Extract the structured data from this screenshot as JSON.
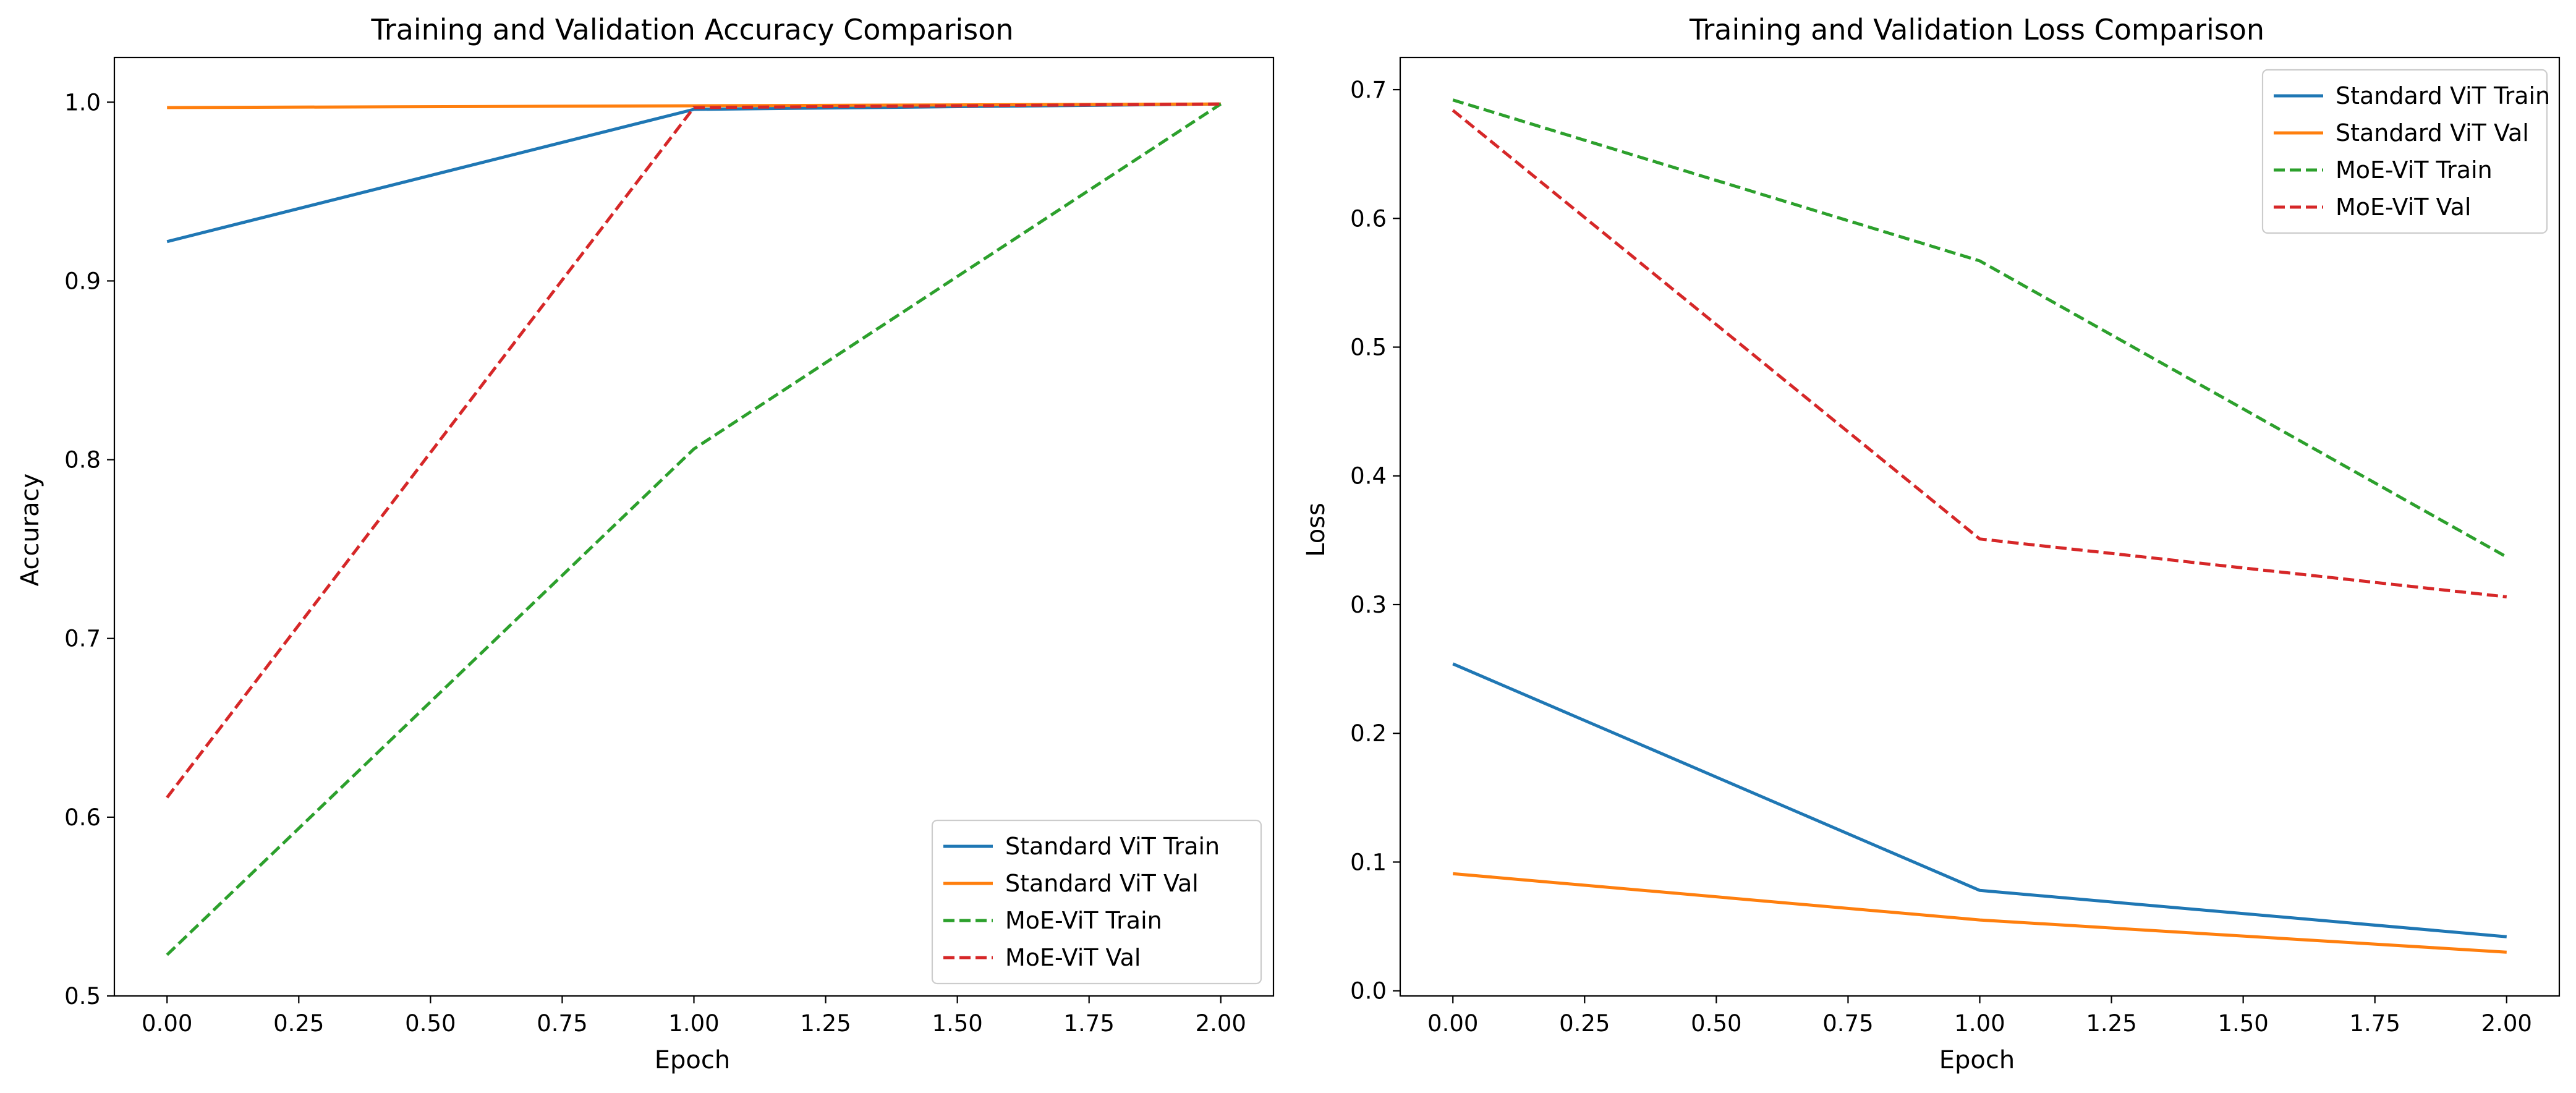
{
  "chart_data": [
    {
      "type": "line",
      "title": "Training and Validation Accuracy Comparison",
      "xlabel": "Epoch",
      "ylabel": "Accuracy",
      "xlim": [
        -0.1,
        2.1
      ],
      "ylim": [
        0.5,
        1.025
      ],
      "xticks": [
        0.0,
        0.25,
        0.5,
        0.75,
        1.0,
        1.25,
        1.5,
        1.75,
        2.0
      ],
      "xtick_labels": [
        "0.00",
        "0.25",
        "0.50",
        "0.75",
        "1.00",
        "1.25",
        "1.50",
        "1.75",
        "2.00"
      ],
      "yticks": [
        0.5,
        0.6,
        0.7,
        0.8,
        0.9,
        1.0
      ],
      "ytick_labels": [
        "0.5",
        "0.6",
        "0.7",
        "0.8",
        "0.9",
        "1.0"
      ],
      "grid": false,
      "legend": "lower right",
      "x": [
        0,
        1,
        2
      ],
      "series": [
        {
          "name": "Standard ViT Train",
          "values": [
            0.922,
            0.996,
            0.999
          ],
          "color": "#1f77b4",
          "style": "solid"
        },
        {
          "name": "Standard ViT Val",
          "values": [
            0.997,
            0.998,
            0.999
          ],
          "color": "#ff7f0e",
          "style": "solid"
        },
        {
          "name": "MoE-ViT Train",
          "values": [
            0.523,
            0.806,
            0.999
          ],
          "color": "#2ca02c",
          "style": "dashed"
        },
        {
          "name": "MoE-ViT Val",
          "values": [
            0.611,
            0.997,
            0.999
          ],
          "color": "#d62728",
          "style": "dashed"
        }
      ]
    },
    {
      "type": "line",
      "title": "Training and Validation Loss Comparison",
      "xlabel": "Epoch",
      "ylabel": "Loss",
      "xlim": [
        -0.1,
        2.1
      ],
      "ylim": [
        -0.004,
        0.725
      ],
      "xticks": [
        0.0,
        0.25,
        0.5,
        0.75,
        1.0,
        1.25,
        1.5,
        1.75,
        2.0
      ],
      "xtick_labels": [
        "0.00",
        "0.25",
        "0.50",
        "0.75",
        "1.00",
        "1.25",
        "1.50",
        "1.75",
        "2.00"
      ],
      "yticks": [
        0.0,
        0.1,
        0.2,
        0.3,
        0.4,
        0.5,
        0.6,
        0.7
      ],
      "ytick_labels": [
        "0.0",
        "0.1",
        "0.2",
        "0.3",
        "0.4",
        "0.5",
        "0.6",
        "0.7"
      ],
      "grid": false,
      "legend": "upper right",
      "x": [
        0,
        1,
        2
      ],
      "series": [
        {
          "name": "Standard ViT Train",
          "values": [
            0.254,
            0.078,
            0.042
          ],
          "color": "#1f77b4",
          "style": "solid"
        },
        {
          "name": "Standard ViT Val",
          "values": [
            0.091,
            0.055,
            0.03
          ],
          "color": "#ff7f0e",
          "style": "solid"
        },
        {
          "name": "MoE-ViT Train",
          "values": [
            0.692,
            0.567,
            0.337
          ],
          "color": "#2ca02c",
          "style": "dashed"
        },
        {
          "name": "MoE-ViT Val",
          "values": [
            0.684,
            0.351,
            0.306
          ],
          "color": "#d62728",
          "style": "dashed"
        }
      ]
    }
  ]
}
